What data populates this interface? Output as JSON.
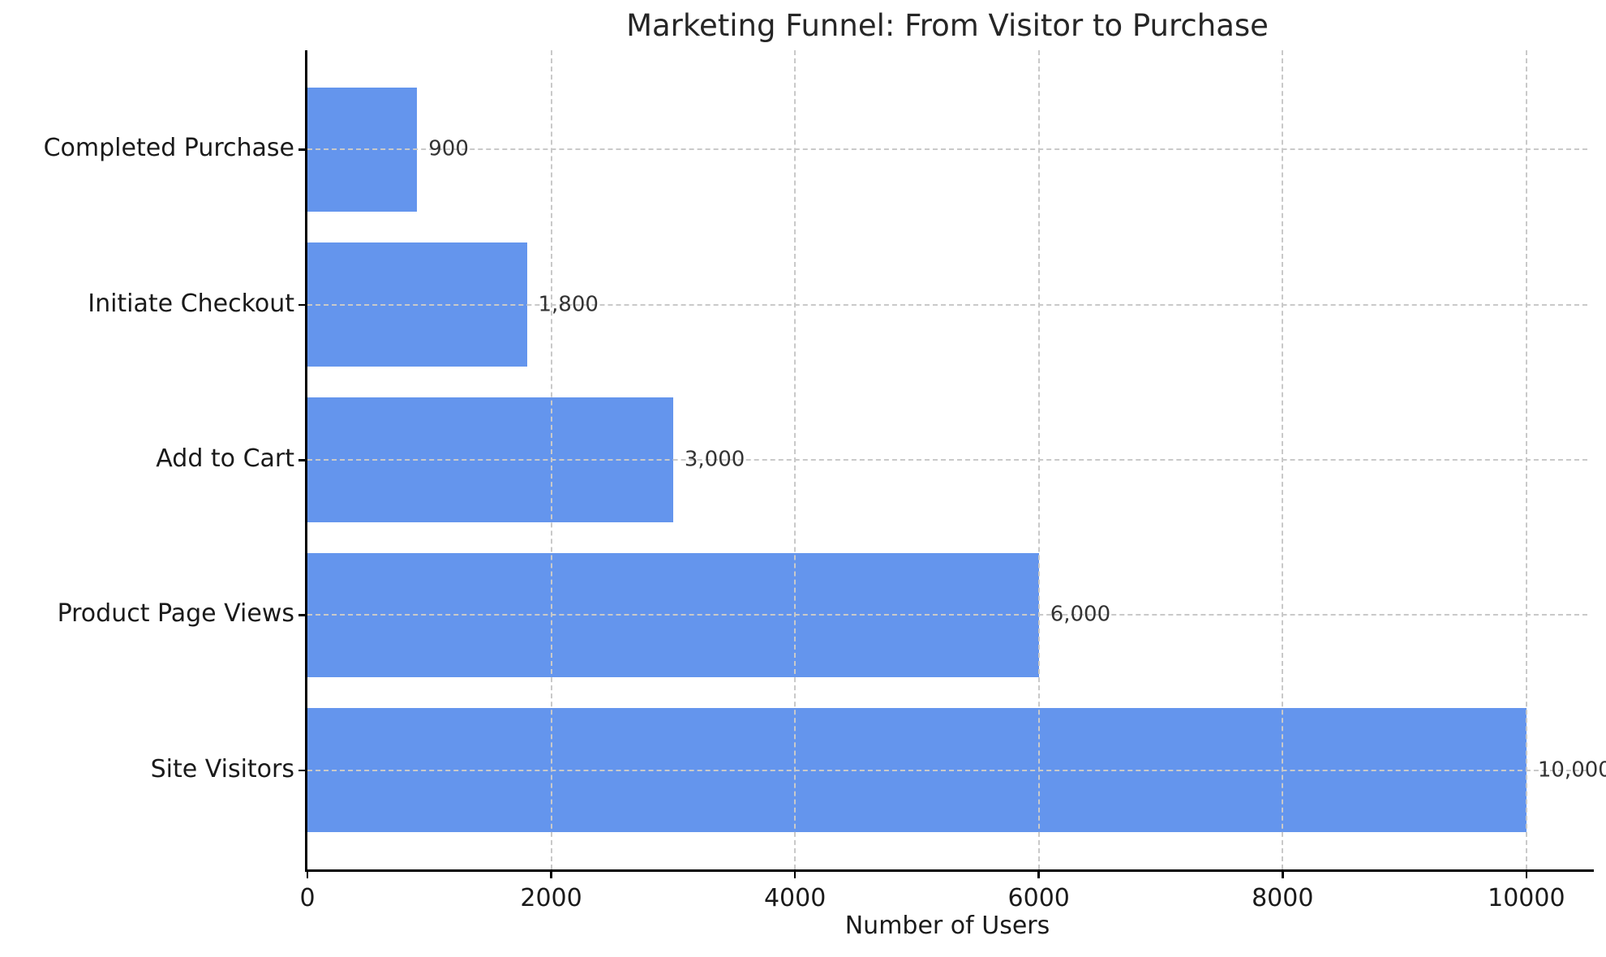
{
  "chart_data": {
    "type": "bar",
    "orientation": "horizontal",
    "title": "Marketing Funnel: From Visitor to Purchase",
    "xlabel": "Number of Users",
    "categories": [
      "Completed Purchase",
      "Initiate Checkout",
      "Add to Cart",
      "Product Page Views",
      "Site Visitors"
    ],
    "values": [
      900,
      1800,
      3000,
      6000,
      10000
    ],
    "value_labels": [
      "900",
      "1,800",
      "3,000",
      "6,000",
      "10,000"
    ],
    "x_ticks": [
      0,
      2000,
      4000,
      6000,
      8000,
      10000
    ],
    "x_tick_labels": [
      "0",
      "2000",
      "4000",
      "6000",
      "8000",
      "10000"
    ],
    "xlim": [
      0,
      10500
    ],
    "bar_height_fraction": 0.8,
    "grid": {
      "show": true,
      "style": "dashed",
      "axes": "both"
    },
    "legend": null,
    "colors": {
      "bar": "#6495ED",
      "grid": "#c9c9c9",
      "spine": "#000000",
      "text": "#1a1a1a",
      "value_label_text": "#333333"
    }
  }
}
